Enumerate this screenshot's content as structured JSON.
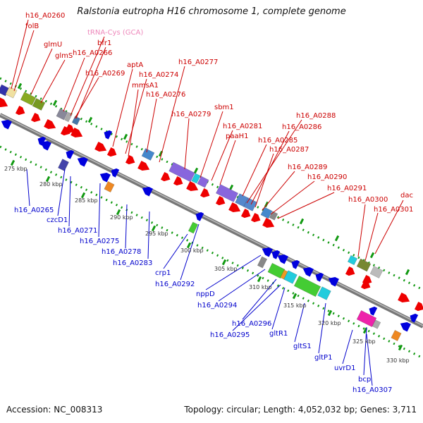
{
  "title": "Ralstonia eutropha H16 chromosome 1, complete genome",
  "footer": {
    "accession": "Accession: NC_008313",
    "topology": "Topology: circular; Length: 4,052,032 bp; Genes: 3,711"
  },
  "colors": {
    "forward_label": "#cc0000",
    "reverse_label": "#0000cc",
    "trna_label": "#ee88bb",
    "forward_gene": "#ee0000",
    "reverse_gene": "#0000dd",
    "backbone": "#888888",
    "tick": "#119911"
  },
  "forward_labels": [
    "h16_A0260",
    "folB",
    "glmU",
    "glmS",
    "tRNA-Cys (GCA)",
    "bfr1",
    "h16_A0266",
    "h16_A0269",
    "aptA",
    "h16_A0274",
    "mmsA1",
    "h16_A0276",
    "h16_A0277",
    "h16_A0279",
    "sbm1",
    "h16_A0281",
    "paaH1",
    "h16_A0285",
    "h16_A0288",
    "h16_A0286",
    "h16_A0287",
    "h16_A0289",
    "h16_A0290",
    "h16_A0291",
    "h16_A0300",
    "h16_A0301",
    "dac"
  ],
  "reverse_labels": [
    "h16_A0265",
    "czcD1",
    "h16_A0271",
    "h16_A0275",
    "h16_A0278",
    "h16_A0283",
    "crp1",
    "h16_A0292",
    "nppD",
    "h16_A0294",
    "h16_A0296",
    "h16_A0295",
    "gltR1",
    "gltS1",
    "gltP1",
    "uvrD1",
    "bcp",
    "h16_A0307"
  ],
  "kbp_ticks": [
    "275 kbp",
    "280 kbp",
    "285 kbp",
    "290 kbp",
    "295 kbp",
    "300 kbp",
    "305 kbp",
    "310 kbp",
    "315 kbp",
    "320 kbp",
    "325 kbp",
    "330 kbp"
  ]
}
